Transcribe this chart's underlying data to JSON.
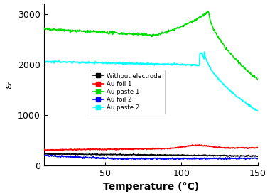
{
  "title": "",
  "xlabel": "Temperature (°C)",
  "ylabel": "εᵣ",
  "xlim": [
    10,
    150
  ],
  "ylim": [
    0,
    3200
  ],
  "xticks": [
    50,
    100,
    150
  ],
  "yticks": [
    0,
    1000,
    2000,
    3000
  ],
  "legend_labels": [
    "Without electrode",
    "Au foil 1",
    "Au paste 1",
    "Au foil 2",
    "Au paste 2"
  ],
  "legend_markers": [
    "s",
    "o",
    "^",
    "v",
    "D"
  ],
  "legend_colors": [
    "black",
    "red",
    "#00dd00",
    "blue",
    "cyan"
  ],
  "background_color": "#ffffff",
  "line_width": 1.2,
  "marker_size": 1.5
}
